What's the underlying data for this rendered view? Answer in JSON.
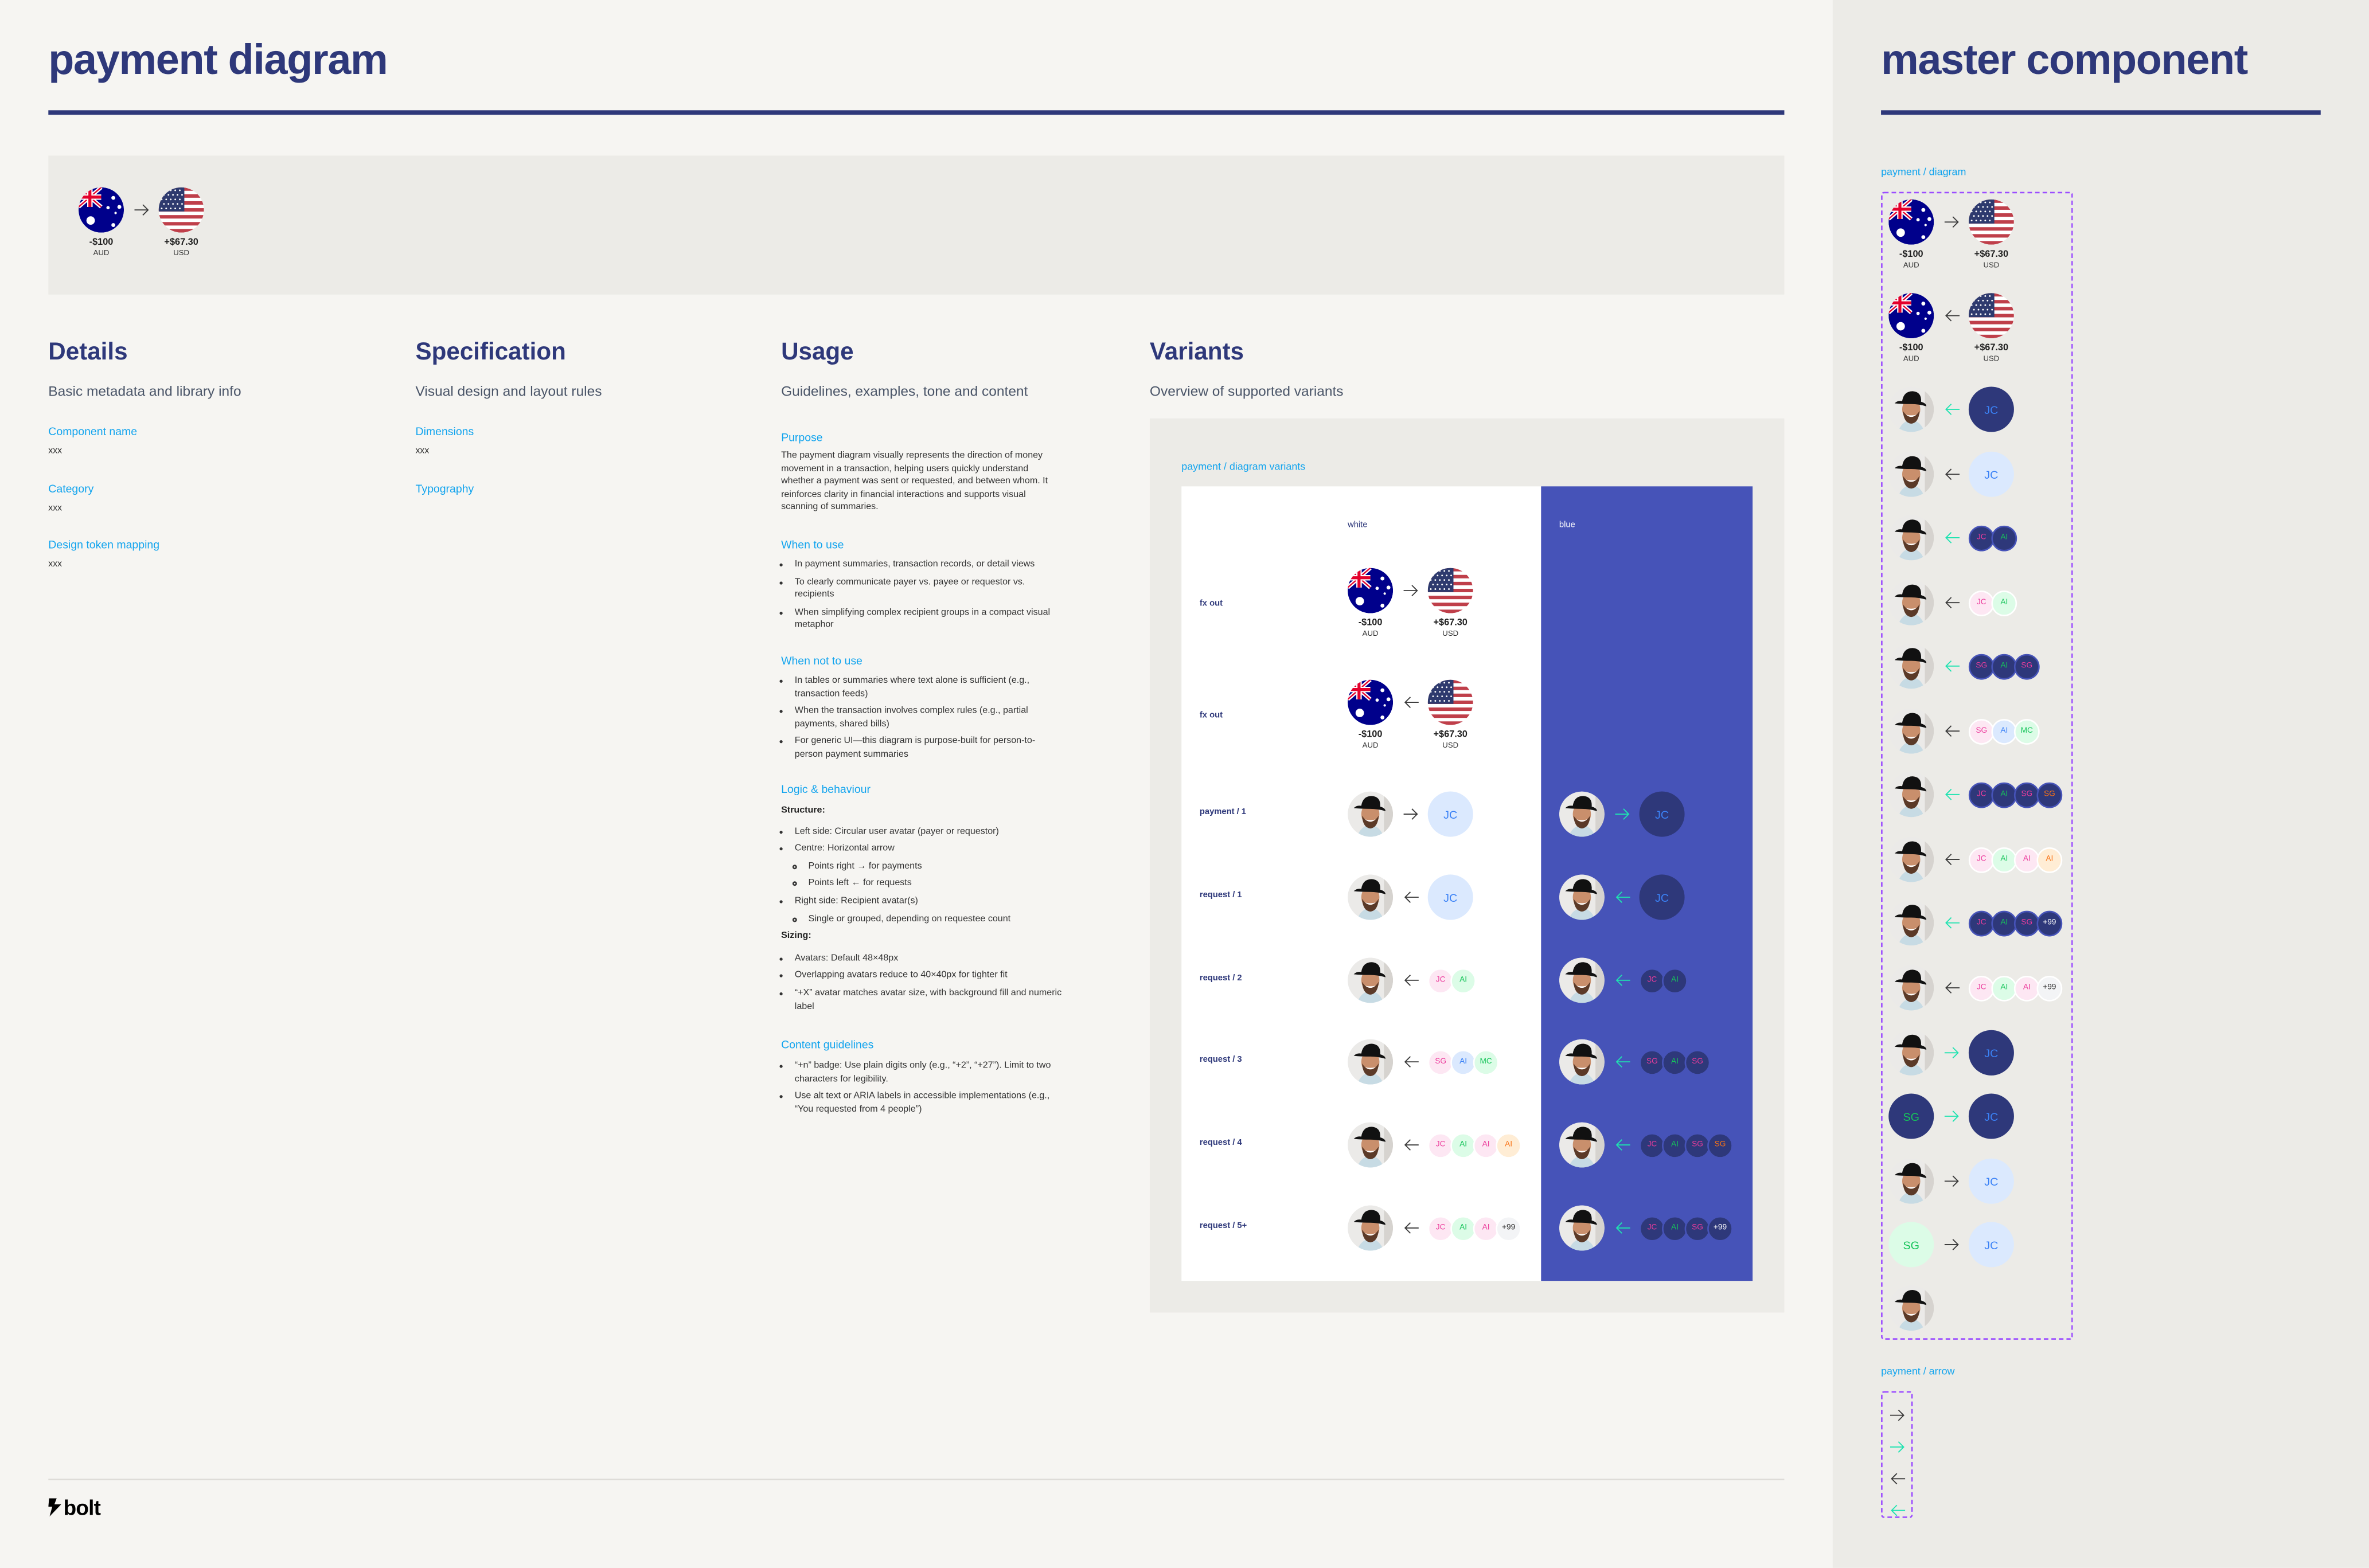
{
  "page": {
    "title": "payment diagram"
  },
  "hero": {
    "direction": "right",
    "from": {
      "kind": "flag-au",
      "amount": "-$100",
      "currency": "AUD"
    },
    "to": {
      "kind": "flag-us",
      "amount": "+$67.30",
      "currency": "USD"
    }
  },
  "details": {
    "heading": "Details",
    "subtitle": "Basic metadata and library info",
    "fields": [
      {
        "label": "Component name",
        "value": "xxx"
      },
      {
        "label": "Category",
        "value": "xxx"
      },
      {
        "label": "Design token mapping",
        "value": "xxx"
      }
    ]
  },
  "specification": {
    "heading": "Specification",
    "subtitle": "Visual design and layout rules",
    "fields": [
      {
        "label": "Dimensions",
        "value": "xxx"
      },
      {
        "label": "Typography"
      }
    ]
  },
  "usage": {
    "heading": "Usage",
    "subtitle": "Guidelines, examples, tone and content",
    "purpose": {
      "label": "Purpose",
      "text": "The payment diagram visually represents the direction of money movement in a transaction, helping users quickly understand whether a payment was sent or requested, and between whom. It reinforces clarity in financial interactions and supports visual scanning of summaries."
    },
    "when_to_use": {
      "label": "When to use",
      "items": [
        "In payment summaries, transaction records, or detail views",
        "To clearly communicate payer vs. payee or requestor vs. recipients",
        "When simplifying complex recipient groups in a compact visual metaphor"
      ]
    },
    "when_not_to_use": {
      "label": "When not to use",
      "items": [
        "In tables or summaries where text alone is sufficient (e.g., transaction feeds)",
        "When the transaction involves complex rules (e.g., partial payments, shared bills)",
        "For generic UI—this diagram is purpose-built for person-to-person payment summaries"
      ]
    },
    "logic": {
      "label": "Logic & behaviour",
      "structure_label": "Structure:",
      "structure": [
        {
          "text": "Left side: Circular user avatar (payer or requestor)"
        },
        {
          "text": "Centre: Horizontal arrow",
          "children": [
            "Points right → for payments",
            "Points left ← for requests"
          ]
        },
        {
          "text": "Right side: Recipient avatar(s)",
          "children": [
            "Single or grouped, depending on requestee count"
          ]
        }
      ],
      "sizing_label": "Sizing:",
      "sizing": [
        "Avatars: Default 48×48px",
        "Overlapping avatars reduce to 40×40px for tighter fit",
        "“+X” avatar matches avatar size, with background fill and numeric label"
      ]
    },
    "content": {
      "label": "Content guidelines",
      "items": [
        "“+n” badge: Use plain digits only (e.g., “+2”, “+27”). Limit to two characters for legibility.",
        "Use alt text or ARIA labels in accessible implementations (e.g., “You requested from 4 people”)"
      ]
    }
  },
  "variants": {
    "heading": "Variants",
    "subtitle": "Overview of supported variants",
    "frame_label": "payment / diagram variants",
    "columns": {
      "white": "white",
      "blue": "blue"
    },
    "rows": [
      {
        "label": "fx out",
        "white": {
          "sender": {
            "kind": "flag-au",
            "amount": "-$100",
            "currency": "AUD"
          },
          "arrow": "right",
          "recipients": [
            {
              "kind": "flag-us",
              "amount": "+$67.30",
              "currency": "USD"
            }
          ]
        },
        "blue": null
      },
      {
        "label": "fx out",
        "white": {
          "sender": {
            "kind": "flag-au",
            "amount": "-$100",
            "currency": "AUD"
          },
          "arrow": "left",
          "recipients": [
            {
              "kind": "flag-us",
              "amount": "+$67.30",
              "currency": "USD"
            }
          ]
        },
        "blue": null
      },
      {
        "label": "payment / 1",
        "white": {
          "sender": {
            "kind": "photo"
          },
          "arrow": "right",
          "recipients": [
            {
              "kind": "initials",
              "initials": "JC",
              "tone": "blue"
            }
          ]
        },
        "blue": {
          "sender": {
            "kind": "photo"
          },
          "arrow": "right",
          "recipients": [
            {
              "kind": "initials",
              "initials": "JC",
              "tone": "blue"
            }
          ]
        }
      },
      {
        "label": "request / 1",
        "white": {
          "sender": {
            "kind": "photo"
          },
          "arrow": "left",
          "recipients": [
            {
              "kind": "initials",
              "initials": "JC",
              "tone": "blue"
            }
          ]
        },
        "blue": {
          "sender": {
            "kind": "photo"
          },
          "arrow": "left",
          "recipients": [
            {
              "kind": "initials",
              "initials": "JC",
              "tone": "blue"
            }
          ]
        }
      },
      {
        "label": "request / 2",
        "white": {
          "sender": {
            "kind": "photo"
          },
          "arrow": "left",
          "recipients": [
            {
              "kind": "initials",
              "initials": "JC",
              "tone": "pink"
            },
            {
              "kind": "initials",
              "initials": "AI",
              "tone": "green"
            }
          ]
        },
        "blue": {
          "sender": {
            "kind": "photo"
          },
          "arrow": "left",
          "recipients": [
            {
              "kind": "initials",
              "initials": "JC",
              "tone": "pink"
            },
            {
              "kind": "initials",
              "initials": "AI",
              "tone": "green"
            }
          ]
        }
      },
      {
        "label": "request / 3",
        "white": {
          "sender": {
            "kind": "photo"
          },
          "arrow": "left",
          "recipients": [
            {
              "kind": "initials",
              "initials": "SG",
              "tone": "pink"
            },
            {
              "kind": "initials",
              "initials": "AI",
              "tone": "blue"
            },
            {
              "kind": "initials",
              "initials": "MC",
              "tone": "green"
            }
          ]
        },
        "blue": {
          "sender": {
            "kind": "photo"
          },
          "arrow": "left",
          "recipients": [
            {
              "kind": "initials",
              "initials": "SG",
              "tone": "pink"
            },
            {
              "kind": "initials",
              "initials": "AI",
              "tone": "green"
            },
            {
              "kind": "initials",
              "initials": "SG",
              "tone": "pink"
            }
          ]
        }
      },
      {
        "label": "request / 4",
        "white": {
          "sender": {
            "kind": "photo"
          },
          "arrow": "left",
          "recipients": [
            {
              "kind": "initials",
              "initials": "JC",
              "tone": "pink"
            },
            {
              "kind": "initials",
              "initials": "AI",
              "tone": "green"
            },
            {
              "kind": "initials",
              "initials": "AI",
              "tone": "pink"
            },
            {
              "kind": "initials",
              "initials": "AI",
              "tone": "orange"
            }
          ]
        },
        "blue": {
          "sender": {
            "kind": "photo"
          },
          "arrow": "left",
          "recipients": [
            {
              "kind": "initials",
              "initials": "JC",
              "tone": "pink"
            },
            {
              "kind": "initials",
              "initials": "AI",
              "tone": "green"
            },
            {
              "kind": "initials",
              "initials": "SG",
              "tone": "pink"
            },
            {
              "kind": "initials",
              "initials": "SG",
              "tone": "orange"
            }
          ]
        }
      },
      {
        "label": "request / 5+",
        "white": {
          "sender": {
            "kind": "photo"
          },
          "arrow": "left",
          "recipients": [
            {
              "kind": "initials",
              "initials": "JC",
              "tone": "pink"
            },
            {
              "kind": "initials",
              "initials": "AI",
              "tone": "green"
            },
            {
              "kind": "initials",
              "initials": "AI",
              "tone": "pink"
            },
            {
              "kind": "initials",
              "initials": "+99",
              "tone": "gray"
            }
          ]
        },
        "blue": {
          "sender": {
            "kind": "photo"
          },
          "arrow": "left",
          "recipients": [
            {
              "kind": "initials",
              "initials": "JC",
              "tone": "pink"
            },
            {
              "kind": "initials",
              "initials": "AI",
              "tone": "green"
            },
            {
              "kind": "initials",
              "initials": "SG",
              "tone": "pink"
            },
            {
              "kind": "initials",
              "initials": "+99",
              "tone": "gray"
            }
          ]
        }
      }
    ]
  },
  "master": {
    "title": "master component",
    "diagram_label": "payment / diagram",
    "arrow_label": "payment / arrow",
    "rows": [
      {
        "theme": "light",
        "arrow_tone": "dark",
        "sender": {
          "kind": "flag-au",
          "amount": "-$100",
          "currency": "AUD"
        },
        "arrow": "right",
        "recipients": [
          {
            "kind": "flag-us",
            "amount": "+$67.30",
            "currency": "USD"
          }
        ]
      },
      {
        "theme": "light",
        "arrow_tone": "dark",
        "sender": {
          "kind": "flag-au",
          "amount": "-$100",
          "currency": "AUD"
        },
        "arrow": "left",
        "recipients": [
          {
            "kind": "flag-us",
            "amount": "+$67.30",
            "currency": "USD"
          }
        ]
      },
      {
        "theme": "dark",
        "arrow_tone": "teal",
        "sender": {
          "kind": "photo"
        },
        "arrow": "left",
        "recipients": [
          {
            "kind": "initials",
            "initials": "JC",
            "tone": "blue"
          }
        ]
      },
      {
        "theme": "light",
        "arrow_tone": "dark",
        "sender": {
          "kind": "photo"
        },
        "arrow": "left",
        "recipients": [
          {
            "kind": "initials",
            "initials": "JC",
            "tone": "blue"
          }
        ]
      },
      {
        "theme": "dark",
        "arrow_tone": "teal",
        "sender": {
          "kind": "photo"
        },
        "arrow": "left",
        "recipients": [
          {
            "kind": "initials",
            "initials": "JC",
            "tone": "pink"
          },
          {
            "kind": "initials",
            "initials": "AI",
            "tone": "green"
          }
        ]
      },
      {
        "theme": "light",
        "arrow_tone": "dark",
        "sender": {
          "kind": "photo"
        },
        "arrow": "left",
        "recipients": [
          {
            "kind": "initials",
            "initials": "JC",
            "tone": "pink"
          },
          {
            "kind": "initials",
            "initials": "AI",
            "tone": "green"
          }
        ]
      },
      {
        "theme": "dark",
        "arrow_tone": "teal",
        "sender": {
          "kind": "photo"
        },
        "arrow": "left",
        "recipients": [
          {
            "kind": "initials",
            "initials": "SG",
            "tone": "pink"
          },
          {
            "kind": "initials",
            "initials": "AI",
            "tone": "green"
          },
          {
            "kind": "initials",
            "initials": "SG",
            "tone": "pink"
          }
        ]
      },
      {
        "theme": "light",
        "arrow_tone": "dark",
        "sender": {
          "kind": "photo"
        },
        "arrow": "left",
        "recipients": [
          {
            "kind": "initials",
            "initials": "SG",
            "tone": "pink"
          },
          {
            "kind": "initials",
            "initials": "AI",
            "tone": "blue"
          },
          {
            "kind": "initials",
            "initials": "MC",
            "tone": "green"
          }
        ]
      },
      {
        "theme": "dark",
        "arrow_tone": "teal",
        "sender": {
          "kind": "photo"
        },
        "arrow": "left",
        "recipients": [
          {
            "kind": "initials",
            "initials": "JC",
            "tone": "pink"
          },
          {
            "kind": "initials",
            "initials": "AI",
            "tone": "green"
          },
          {
            "kind": "initials",
            "initials": "SG",
            "tone": "pink"
          },
          {
            "kind": "initials",
            "initials": "SG",
            "tone": "orange"
          }
        ]
      },
      {
        "theme": "light",
        "arrow_tone": "dark",
        "sender": {
          "kind": "photo"
        },
        "arrow": "left",
        "recipients": [
          {
            "kind": "initials",
            "initials": "JC",
            "tone": "pink"
          },
          {
            "kind": "initials",
            "initials": "AI",
            "tone": "green"
          },
          {
            "kind": "initials",
            "initials": "AI",
            "tone": "pink"
          },
          {
            "kind": "initials",
            "initials": "AI",
            "tone": "orange"
          }
        ]
      },
      {
        "theme": "dark",
        "arrow_tone": "teal",
        "sender": {
          "kind": "photo"
        },
        "arrow": "left",
        "recipients": [
          {
            "kind": "initials",
            "initials": "JC",
            "tone": "pink"
          },
          {
            "kind": "initials",
            "initials": "AI",
            "tone": "green"
          },
          {
            "kind": "initials",
            "initials": "SG",
            "tone": "pink"
          },
          {
            "kind": "initials",
            "initials": "+99",
            "tone": "gray"
          }
        ]
      },
      {
        "theme": "light",
        "arrow_tone": "dark",
        "sender": {
          "kind": "photo"
        },
        "arrow": "left",
        "recipients": [
          {
            "kind": "initials",
            "initials": "JC",
            "tone": "pink"
          },
          {
            "kind": "initials",
            "initials": "AI",
            "tone": "green"
          },
          {
            "kind": "initials",
            "initials": "AI",
            "tone": "pink"
          },
          {
            "kind": "initials",
            "initials": "+99",
            "tone": "gray"
          }
        ]
      },
      {
        "theme": "dark",
        "arrow_tone": "teal",
        "sender": {
          "kind": "photo"
        },
        "arrow": "right",
        "recipients": [
          {
            "kind": "initials",
            "initials": "JC",
            "tone": "blue"
          }
        ]
      },
      {
        "theme": "dark",
        "arrow_tone": "teal",
        "sender": {
          "kind": "initials",
          "initials": "SG",
          "tone": "green"
        },
        "arrow": "right",
        "recipients": [
          {
            "kind": "initials",
            "initials": "JC",
            "tone": "blue"
          }
        ]
      },
      {
        "theme": "light",
        "arrow_tone": "dark",
        "sender": {
          "kind": "photo"
        },
        "arrow": "right",
        "recipients": [
          {
            "kind": "initials",
            "initials": "JC",
            "tone": "blue"
          }
        ]
      },
      {
        "theme": "light",
        "arrow_tone": "dark",
        "sender": {
          "kind": "initials",
          "initials": "SG",
          "tone": "green"
        },
        "arrow": "right",
        "recipients": [
          {
            "kind": "initials",
            "initials": "JC",
            "tone": "blue"
          }
        ]
      },
      {
        "theme": "light",
        "arrow_tone": "dark",
        "sender": {
          "kind": "photo"
        },
        "arrow": null,
        "recipients": []
      }
    ],
    "arrows": [
      {
        "direction": "right",
        "tone": "dark"
      },
      {
        "direction": "right",
        "tone": "teal"
      },
      {
        "direction": "left",
        "tone": "dark"
      },
      {
        "direction": "left",
        "tone": "teal"
      }
    ]
  },
  "footer": {
    "logo": "bolt"
  },
  "colors": {
    "navy": "#2e387a",
    "accent_blue": "#4653b8",
    "link": "#12a4ee",
    "arrow_dark": "#3a3a3a",
    "arrow_teal": "#1ee3b0",
    "dark_avatar_bg": "#2e387a",
    "tones": {
      "blue": {
        "bg": "#dbe9fe",
        "fg": "#3b82f6",
        "dark_fg": "#3b82f6"
      },
      "pink": {
        "bg": "#fde7f3",
        "fg": "#ec3c9c",
        "dark_fg": "#ec3c9c"
      },
      "green": {
        "bg": "#dcfce7",
        "fg": "#16c45a",
        "dark_fg": "#16c45a"
      },
      "orange": {
        "bg": "#ffedd5",
        "fg": "#f97316",
        "dark_fg": "#f97316"
      },
      "gray": {
        "bg": "#f3f4f6",
        "fg": "#2b2b2b",
        "dark_fg": "#ffffff"
      }
    }
  }
}
